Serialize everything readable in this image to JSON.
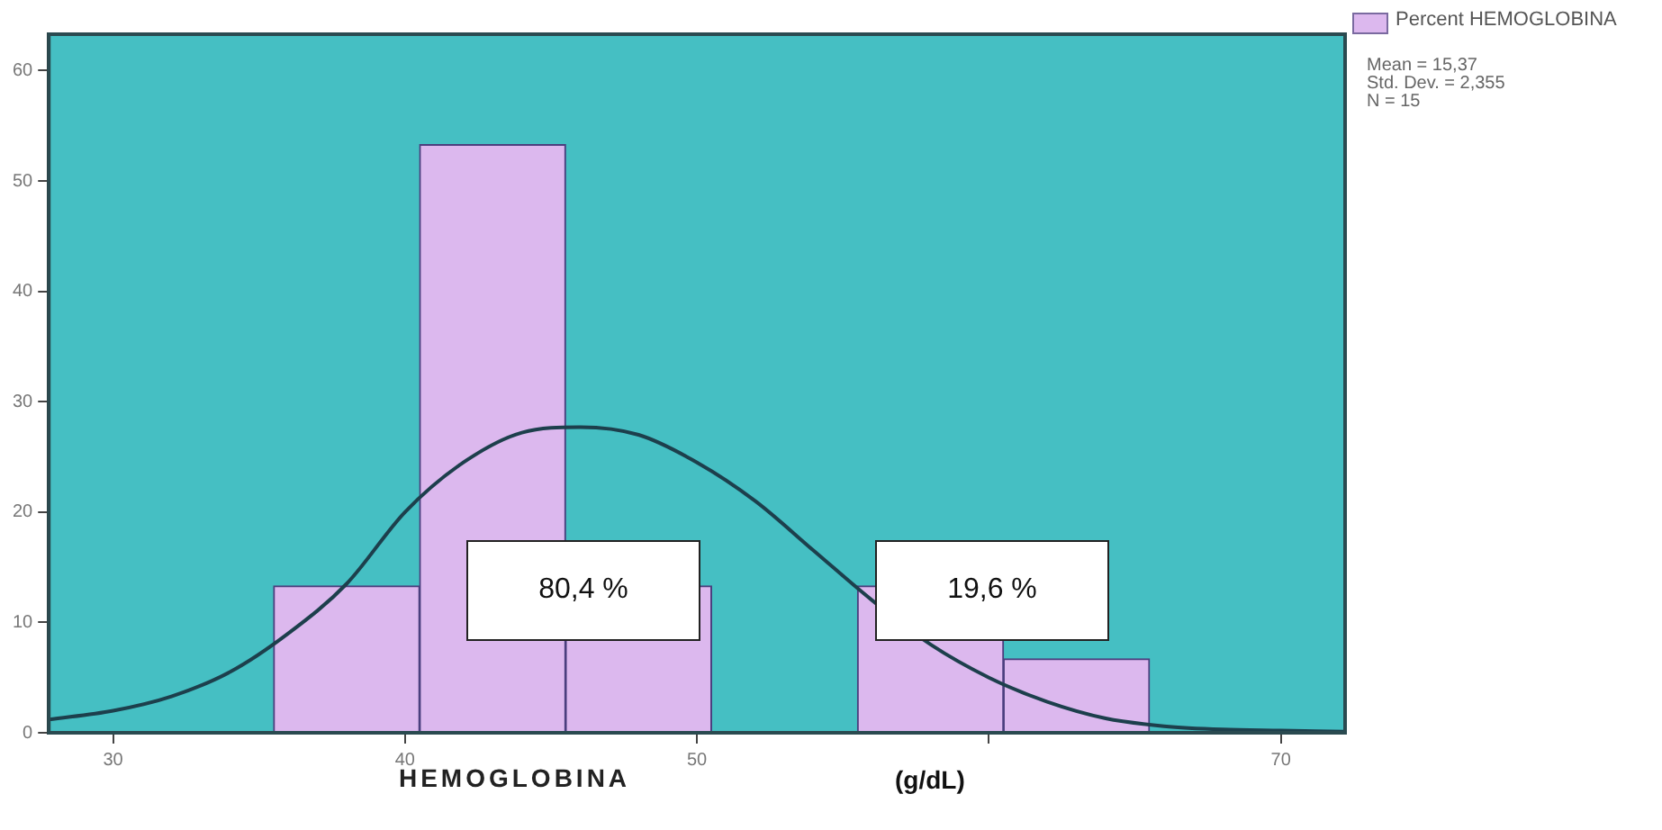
{
  "chart_data": {
    "type": "histogram",
    "xlabel": "HEMOGLOBINA",
    "bins": [
      35.5,
      40.5,
      45.5,
      50.5,
      55.5,
      60.5,
      65.5
    ],
    "series": [
      {
        "name": "Percent HEMOGLOBINA",
        "color": "#dcb8ee",
        "values": [
          13.3,
          53.3,
          13.3,
          0,
          13.3,
          6.7
        ]
      },
      {
        "type": "line",
        "color": "#1d3f4c",
        "x": [
          27.8,
          30,
          32,
          34,
          36,
          38,
          40,
          42,
          44,
          46,
          48,
          50,
          52,
          54,
          56,
          58,
          60,
          62,
          64,
          66,
          68,
          70,
          72.2
        ],
        "values": [
          1.2,
          2,
          3.3,
          5.5,
          9,
          13.5,
          20,
          24.5,
          27.2,
          27.7,
          27,
          24.5,
          21,
          16.5,
          12,
          8,
          5,
          2.8,
          1.3,
          0.6,
          0.3,
          0.2,
          0.1
        ]
      }
    ],
    "xlim": [
      27.8,
      72.2
    ],
    "xticks": [
      30,
      40,
      50,
      {
        "value": 60,
        "label": null
      },
      70
    ],
    "ylim": [
      0,
      63.3
    ],
    "yticks": [
      0,
      10,
      20,
      30,
      40,
      50,
      60
    ],
    "grid": false,
    "legend": "top right",
    "marker": "none",
    "line_style": "solid",
    "annotations": [
      "Mean = 15,37",
      "Std. Dev. = 2,355",
      "N = 15",
      "80,4 %",
      "19,6 %",
      "(g/dL)"
    ]
  }
}
